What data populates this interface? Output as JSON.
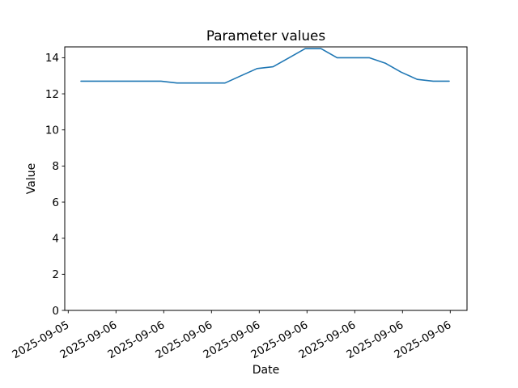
{
  "chart_data": {
    "type": "line",
    "title": "Parameter values",
    "xlabel": "Date",
    "ylabel": "Value",
    "values": [
      12.7,
      12.7,
      12.7,
      12.7,
      12.7,
      12.7,
      12.6,
      12.6,
      12.6,
      12.6,
      13.0,
      13.4,
      13.5,
      14.0,
      14.5,
      14.5,
      14.0,
      14.0,
      14.0,
      13.7,
      13.2,
      12.8,
      12.7,
      12.7
    ],
    "x_tick_labels": [
      "2025-09-05",
      "2025-09-06",
      "2025-09-06",
      "2025-09-06",
      "2025-09-06",
      "2025-09-06",
      "2025-09-06",
      "2025-09-06",
      "2025-09-06"
    ],
    "y_ticks": [
      0,
      2,
      4,
      6,
      8,
      10,
      12,
      14
    ],
    "ylim": [
      0,
      14.6
    ],
    "grid": false,
    "legend": false,
    "line_color": "#1f77b4",
    "spine_color": "#000000",
    "background_color": "#ffffff"
  }
}
